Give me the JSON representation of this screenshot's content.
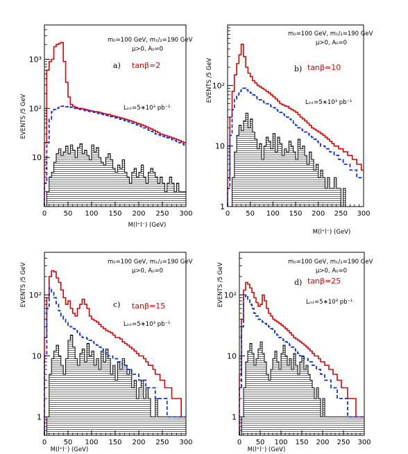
{
  "chart_data": [
    {
      "type": "histogram",
      "panel_label": "a)",
      "params_line1": "m₀=100 GeV, m₁/₂=190 GeV",
      "params_line2": "μ>0, A₀=0",
      "tanbeta_label": "tanβ=2",
      "luminosity_label": "Lᵢₙₜ=5∗10³ pb⁻¹",
      "ylabel": "EVENTS /5 GeV",
      "xlabel": "M(l⁺l⁻) (GeV)",
      "x_ticks": [
        "0",
        "50",
        "100",
        "150",
        "200",
        "250",
        "300"
      ],
      "y_ticks": [
        "10",
        "10²",
        "10³"
      ],
      "xlim": [
        0,
        300
      ],
      "ylim": [
        1,
        5000
      ],
      "log_y": true,
      "bin_width": 5,
      "series": [
        {
          "style": "solid",
          "color": "#e00000",
          "values": [
            20,
            600,
            900,
            1000,
            1800,
            2000,
            2100,
            2200,
            900,
            340,
            170,
            120,
            110,
            105,
            100,
            100,
            98,
            95,
            92,
            90,
            88,
            86,
            85,
            83,
            80,
            78,
            76,
            75,
            72,
            70,
            68,
            66,
            64,
            62,
            60,
            58,
            56,
            54,
            52,
            50,
            48,
            46,
            44,
            42,
            40,
            38,
            36,
            34,
            32,
            30,
            29,
            28,
            27,
            26,
            25,
            24,
            23,
            22,
            21,
            20
          ]
        },
        {
          "style": "dashed",
          "color": "#1030e0",
          "values": [
            3,
            20,
            60,
            85,
            95,
            100,
            105,
            110,
            112,
            108,
            110,
            105,
            100,
            100,
            97,
            95,
            93,
            90,
            88,
            86,
            85,
            83,
            80,
            78,
            76,
            74,
            72,
            70,
            68,
            66,
            64,
            62,
            60,
            58,
            56,
            54,
            52,
            50,
            48,
            46,
            44,
            42,
            40,
            38,
            36,
            34,
            32,
            30,
            29,
            28,
            27,
            26,
            25,
            24,
            23,
            22,
            21,
            20,
            19,
            18
          ]
        },
        {
          "style": "hatched",
          "color": "#000000",
          "values": [
            0,
            2,
            4,
            5,
            8,
            12,
            15,
            11,
            13,
            17,
            12,
            18,
            14,
            10,
            16,
            19,
            12,
            14,
            11,
            9,
            18,
            13,
            16,
            10,
            8,
            7,
            10,
            12,
            9,
            6,
            5,
            7,
            6,
            9,
            5,
            4,
            3,
            5,
            6,
            4,
            5,
            7,
            4,
            3,
            5,
            6,
            5,
            4,
            3,
            4,
            3,
            2,
            3,
            4,
            3,
            2,
            3,
            2,
            2,
            2
          ]
        }
      ]
    },
    {
      "type": "histogram",
      "panel_label": "b)",
      "params_line1": "m₀=100 GeV, m₁/₂=190 GeV",
      "params_line2": "μ>0, A₀=0",
      "tanbeta_label": "tanβ=10",
      "luminosity_label": "Lᵢₙₜ=5∗10³ pb⁻¹",
      "ylabel": "EVENTS /5 GeV",
      "xlabel": "M(l⁺l⁻) (GeV)",
      "x_ticks": [
        "0",
        "50",
        "100",
        "150",
        "200",
        "250",
        "300"
      ],
      "y_ticks": [
        "1",
        "10",
        "10²"
      ],
      "xlim": [
        0,
        300
      ],
      "ylim": [
        1,
        1000
      ],
      "log_y": true,
      "bin_width": 5,
      "series": [
        {
          "style": "solid",
          "color": "#e00000",
          "values": [
            3,
            30,
            80,
            150,
            230,
            320,
            480,
            300,
            200,
            160,
            140,
            120,
            110,
            100,
            95,
            90,
            85,
            80,
            75,
            70,
            65,
            60,
            55,
            50,
            48,
            46,
            45,
            42,
            40,
            38,
            36,
            33,
            30,
            28,
            26,
            24,
            22,
            20,
            19,
            18,
            17,
            16,
            15,
            14,
            13,
            12,
            11,
            10,
            10,
            9,
            9,
            8,
            8,
            7,
            7,
            6,
            6,
            5,
            5,
            4
          ]
        },
        {
          "style": "dashed",
          "color": "#1030e0",
          "values": [
            2,
            15,
            40,
            60,
            70,
            80,
            90,
            90,
            85,
            80,
            75,
            70,
            65,
            60,
            58,
            55,
            52,
            50,
            48,
            45,
            43,
            40,
            38,
            36,
            34,
            32,
            30,
            28,
            26,
            24,
            22,
            20,
            19,
            18,
            17,
            16,
            15,
            14,
            13,
            12,
            11,
            10,
            10,
            9,
            9,
            8,
            8,
            7,
            7,
            6,
            6,
            5,
            5,
            5,
            4,
            4,
            4,
            3,
            3,
            3
          ]
        },
        {
          "style": "hatched",
          "color": "#000000",
          "values": [
            0,
            0,
            3,
            8,
            15,
            22,
            18,
            26,
            35,
            20,
            28,
            17,
            13,
            9,
            11,
            6,
            10,
            14,
            12,
            9,
            16,
            8,
            14,
            11,
            7,
            9,
            8,
            12,
            10,
            8,
            6,
            13,
            9,
            10,
            7,
            5,
            8,
            6,
            4,
            5,
            3,
            4,
            3,
            2,
            3,
            2,
            2,
            3,
            2,
            2,
            1,
            2,
            1,
            1,
            1,
            1,
            1,
            1,
            1,
            1
          ]
        }
      ]
    },
    {
      "type": "histogram",
      "panel_label": "c)",
      "params_line1": "m₀=100 GeV, m₁/₂=190 GeV",
      "params_line2": "μ>0, A₀=0",
      "tanbeta_label": "tanβ=15",
      "luminosity_label": "Lᵢₙₜ=5∗10³ pb⁻¹",
      "ylabel": "EVENTS /5 GeV",
      "xlabel": "M(l⁺l⁻) (GeV)",
      "x_ticks": [
        "0",
        "50",
        "100",
        "150",
        "200",
        "250",
        "300"
      ],
      "y_ticks": [
        "1",
        "10",
        "10²"
      ],
      "xlim": [
        0,
        300
      ],
      "ylim": [
        0.5,
        500
      ],
      "log_y": true,
      "bin_width": 5,
      "series": [
        {
          "style": "solid",
          "color": "#e00000",
          "values": [
            20,
            90,
            200,
            250,
            240,
            190,
            160,
            120,
            90,
            70,
            80,
            60,
            50,
            45,
            60,
            70,
            85,
            70,
            60,
            45,
            40,
            38,
            36,
            33,
            30,
            28,
            26,
            25,
            24,
            22,
            20,
            20,
            19,
            17,
            16,
            15,
            14,
            13,
            12,
            11,
            10,
            10,
            9,
            8,
            7,
            7,
            6,
            5,
            5,
            4,
            4,
            3,
            3,
            3,
            2,
            2,
            2,
            2,
            1,
            1
          ]
        },
        {
          "style": "dashed",
          "color": "#1030e0",
          "values": [
            10,
            60,
            130,
            110,
            90,
            70,
            55,
            45,
            40,
            35,
            32,
            30,
            28,
            26,
            24,
            22,
            20,
            20,
            19,
            18,
            17,
            16,
            15,
            14,
            13,
            12,
            11,
            10,
            10,
            9,
            9,
            8,
            8,
            7,
            7,
            6,
            6,
            5,
            5,
            5,
            4,
            4,
            4,
            3,
            3,
            3,
            3,
            2,
            2,
            2,
            2,
            2,
            1,
            1,
            1,
            1,
            1,
            1,
            1,
            1
          ]
        },
        {
          "style": "hatched",
          "color": "#000000",
          "values": [
            0,
            1,
            5,
            9,
            12,
            15,
            10,
            7,
            5,
            9,
            18,
            22,
            14,
            9,
            7,
            11,
            13,
            8,
            16,
            10,
            12,
            7,
            9,
            6,
            12,
            8,
            13,
            9,
            5,
            7,
            4,
            8,
            6,
            9,
            7,
            5,
            6,
            3,
            4,
            2,
            3,
            4,
            2,
            3,
            2,
            1,
            1,
            2,
            1,
            1,
            1,
            1,
            1,
            1,
            1,
            1,
            1,
            1,
            1,
            1
          ]
        }
      ]
    },
    {
      "type": "histogram",
      "panel_label": "d)",
      "params_line1": "m₀=100 GeV, m₁/₂=190 GeV",
      "params_line2": "μ>0, A₀=0",
      "tanbeta_label": "tanβ=25",
      "luminosity_label": "Lᵢₙₜ=5∗10³ pb⁻¹",
      "ylabel": "EVENTS /5 GeV",
      "xlabel": "M(l⁺l⁻) (GeV)",
      "x_ticks": [
        "0",
        "50",
        "100",
        "150",
        "200",
        "250",
        "300"
      ],
      "y_ticks": [
        "1",
        "10",
        "10²"
      ],
      "xlim": [
        0,
        300
      ],
      "ylim": [
        0.5,
        500
      ],
      "log_y": true,
      "bin_width": 5,
      "series": [
        {
          "style": "solid",
          "color": "#e00000",
          "values": [
            5,
            40,
            120,
            160,
            150,
            130,
            110,
            90,
            75,
            65,
            70,
            100,
            80,
            60,
            50,
            45,
            40,
            38,
            36,
            34,
            32,
            30,
            28,
            26,
            24,
            22,
            20,
            19,
            18,
            17,
            16,
            15,
            14,
            13,
            12,
            11,
            10,
            10,
            9,
            8,
            8,
            7,
            7,
            6,
            6,
            5,
            5,
            4,
            4,
            3,
            3,
            3,
            2,
            2,
            2,
            2,
            1,
            1,
            1,
            1
          ]
        },
        {
          "style": "dashed",
          "color": "#1030e0",
          "values": [
            3,
            30,
            90,
            100,
            85,
            70,
            60,
            50,
            45,
            40,
            38,
            36,
            34,
            32,
            30,
            28,
            26,
            24,
            22,
            20,
            19,
            18,
            17,
            16,
            15,
            14,
            13,
            12,
            11,
            10,
            10,
            9,
            9,
            8,
            8,
            7,
            7,
            6,
            6,
            5,
            5,
            4,
            4,
            4,
            3,
            3,
            3,
            2,
            2,
            2,
            2,
            2,
            1,
            1,
            1,
            1,
            1,
            1,
            1,
            1
          ]
        },
        {
          "style": "hatched",
          "color": "#000000",
          "values": [
            0,
            1,
            3,
            8,
            12,
            16,
            11,
            7,
            9,
            13,
            17,
            11,
            8,
            5,
            4,
            6,
            9,
            12,
            8,
            6,
            11,
            15,
            10,
            7,
            9,
            6,
            11,
            7,
            5,
            8,
            10,
            6,
            7,
            5,
            4,
            3,
            2,
            3,
            2,
            1,
            2,
            1,
            1,
            1,
            1,
            1,
            1,
            1,
            1,
            1,
            1,
            1,
            1,
            1,
            1,
            1,
            1,
            1,
            1,
            1
          ]
        }
      ]
    }
  ]
}
